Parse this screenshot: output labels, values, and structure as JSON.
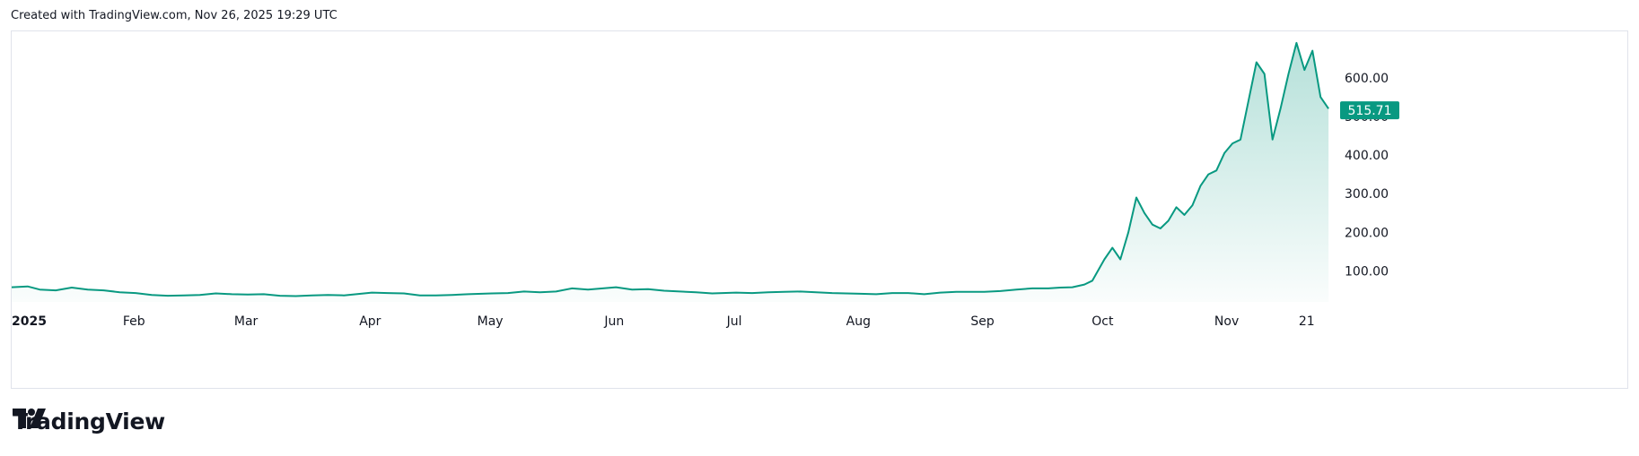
{
  "header": {
    "created_text": "Created with TradingView.com, Nov 26, 2025 19:29 UTC"
  },
  "brand": {
    "name": "TradingView"
  },
  "colors": {
    "line": "#089981",
    "tag": "#089981",
    "fill_top": "#089981"
  },
  "chart_data": {
    "type": "area",
    "title": "",
    "xlabel": "",
    "ylabel": "",
    "ylim": [
      20,
      720
    ],
    "grid": false,
    "y_ticks": [
      "100.00",
      "200.00",
      "300.00",
      "400.00",
      "500.00",
      "600.00"
    ],
    "y_tick_values": [
      100,
      200,
      300,
      400,
      500,
      600
    ],
    "x_ticks": [
      {
        "label": "2025",
        "date": "2025-01-01",
        "bold": true
      },
      {
        "label": "Feb",
        "date": "2025-02-01"
      },
      {
        "label": "Mar",
        "date": "2025-03-01"
      },
      {
        "label": "Apr",
        "date": "2025-04-01"
      },
      {
        "label": "May",
        "date": "2025-05-01"
      },
      {
        "label": "Jun",
        "date": "2025-06-01"
      },
      {
        "label": "Jul",
        "date": "2025-07-01"
      },
      {
        "label": "Aug",
        "date": "2025-08-01"
      },
      {
        "label": "Sep",
        "date": "2025-09-01"
      },
      {
        "label": "Oct",
        "date": "2025-10-01"
      },
      {
        "label": "Nov",
        "date": "2025-11-01"
      },
      {
        "label": "21",
        "date": "2025-11-21"
      }
    ],
    "last_price": 515.71,
    "last_price_label": "515.71",
    "series": [
      {
        "x": [
          "2025-01-01",
          "2025-01-05",
          "2025-01-08",
          "2025-01-12",
          "2025-01-16",
          "2025-01-20",
          "2025-01-24",
          "2025-01-28",
          "2025-02-01",
          "2025-02-05",
          "2025-02-09",
          "2025-02-13",
          "2025-02-17",
          "2025-02-21",
          "2025-02-25",
          "2025-03-01",
          "2025-03-05",
          "2025-03-09",
          "2025-03-13",
          "2025-03-17",
          "2025-03-21",
          "2025-03-25",
          "2025-04-01",
          "2025-04-05",
          "2025-04-09",
          "2025-04-13",
          "2025-04-17",
          "2025-04-21",
          "2025-04-25",
          "2025-05-01",
          "2025-05-05",
          "2025-05-09",
          "2025-05-13",
          "2025-05-17",
          "2025-05-21",
          "2025-05-25",
          "2025-06-01",
          "2025-06-05",
          "2025-06-09",
          "2025-06-13",
          "2025-06-17",
          "2025-06-21",
          "2025-06-25",
          "2025-07-01",
          "2025-07-05",
          "2025-07-09",
          "2025-07-13",
          "2025-07-17",
          "2025-07-21",
          "2025-07-25",
          "2025-08-01",
          "2025-08-05",
          "2025-08-09",
          "2025-08-13",
          "2025-08-17",
          "2025-08-21",
          "2025-08-25",
          "2025-09-01",
          "2025-09-05",
          "2025-09-09",
          "2025-09-13",
          "2025-09-17",
          "2025-09-20",
          "2025-09-23",
          "2025-09-26",
          "2025-09-28",
          "2025-10-01",
          "2025-10-03",
          "2025-10-05",
          "2025-10-07",
          "2025-10-09",
          "2025-10-11",
          "2025-10-13",
          "2025-10-15",
          "2025-10-17",
          "2025-10-19",
          "2025-10-21",
          "2025-10-23",
          "2025-10-25",
          "2025-10-27",
          "2025-10-29",
          "2025-10-31",
          "2025-11-02",
          "2025-11-04",
          "2025-11-06",
          "2025-11-08",
          "2025-11-10",
          "2025-11-12",
          "2025-11-14",
          "2025-11-16",
          "2025-11-18",
          "2025-11-20",
          "2025-11-22",
          "2025-11-24",
          "2025-11-26"
        ],
        "values": [
          58,
          60,
          52,
          50,
          57,
          52,
          50,
          45,
          43,
          38,
          36,
          37,
          38,
          42,
          40,
          39,
          40,
          36,
          35,
          37,
          38,
          37,
          44,
          43,
          42,
          37,
          37,
          38,
          40,
          42,
          43,
          47,
          45,
          47,
          55,
          52,
          58,
          52,
          53,
          49,
          47,
          45,
          42,
          44,
          43,
          45,
          46,
          47,
          45,
          43,
          41,
          40,
          43,
          43,
          40,
          44,
          46,
          46,
          48,
          52,
          55,
          55,
          57,
          58,
          65,
          75,
          130,
          160,
          130,
          200,
          290,
          250,
          220,
          210,
          230,
          265,
          245,
          270,
          320,
          350,
          360,
          405,
          430,
          440,
          540,
          640,
          610,
          440,
          520,
          610,
          690,
          620,
          670,
          550,
          520
        ]
      }
    ]
  }
}
